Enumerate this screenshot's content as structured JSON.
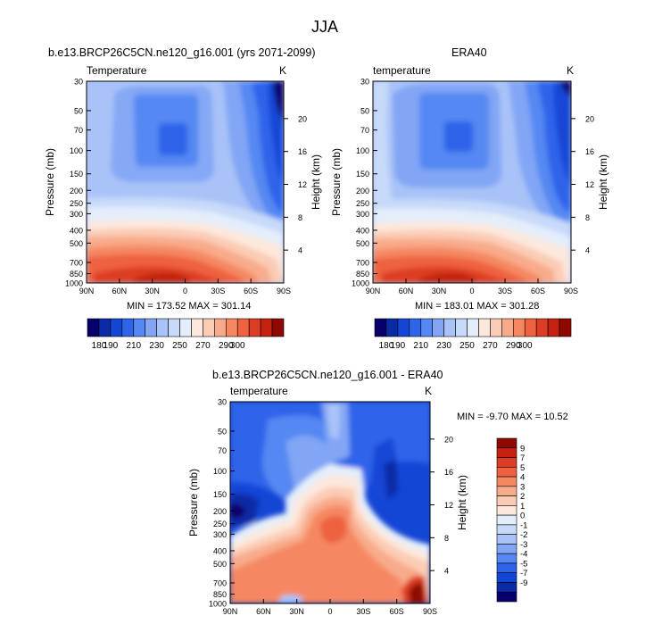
{
  "figure": {
    "title": "JJA"
  },
  "colors": {
    "abs": [
      "#08006a",
      "#0a2aa6",
      "#1446d6",
      "#2d64ea",
      "#5588f2",
      "#82a6f5",
      "#a9c3f8",
      "#c8daf9",
      "#e4eefb",
      "#fde8dd",
      "#fbccb5",
      "#f8ab8b",
      "#f58862",
      "#ee6240",
      "#dd3c24",
      "#c2220f",
      "#8e0a00"
    ],
    "diff": [
      "#08006a",
      "#0a2aa6",
      "#1446d6",
      "#2d64ea",
      "#5588f2",
      "#82a6f5",
      "#a9c3f8",
      "#c8daf9",
      "#e4eefb",
      "#fde8dd",
      "#fbccb5",
      "#f8ab8b",
      "#f58862",
      "#ee6240",
      "#dd3c24",
      "#c2220f",
      "#8e0a00"
    ]
  },
  "panels": [
    {
      "title": "b.e13.BRCP26C5CN.ne120_g16.001 (yrs 2071-2099)",
      "left_label": "Temperature",
      "right_label": "K",
      "minmax": "MIN = 173.52  MAX = 301.14"
    },
    {
      "title": "ERA40",
      "left_label": "temperature",
      "right_label": "K",
      "minmax": "MIN = 183.01  MAX = 301.28"
    },
    {
      "title": "b.e13.BRCP26C5CN.ne120_g16.001 - ERA40",
      "left_label": "temperature",
      "right_label": "K",
      "minmax": "MIN = -9.70  MAX = 10.52"
    }
  ],
  "colorbar_abs": {
    "labels": [
      "180",
      "190",
      "210",
      "230",
      "250",
      "270",
      "290",
      "300"
    ]
  },
  "colorbar_diff": {
    "labels": [
      "9",
      "7",
      "5",
      "4",
      "3",
      "2",
      "1",
      "0",
      "-1",
      "-2",
      "-3",
      "-4",
      "-5",
      "-7",
      "-9"
    ]
  },
  "chart_data": [
    {
      "type": "heatmap",
      "title": "b.e13.BRCP26C5CN.ne120_g16.001 (yrs 2071-2099)",
      "variable": "Temperature",
      "units": "K",
      "xlabel": "",
      "ylabel": "Pressure (mb)",
      "y2label": "Height (km)",
      "x_ticks": [
        "90N",
        "60N",
        "30N",
        "0",
        "30S",
        "60S",
        "90S"
      ],
      "x_values": [
        90,
        60,
        30,
        0,
        -30,
        -60,
        -90
      ],
      "y_ticks": [
        30,
        50,
        70,
        100,
        150,
        200,
        250,
        300,
        400,
        500,
        700,
        850,
        1000
      ],
      "y2_ticks": [
        20,
        16,
        12,
        8,
        4
      ],
      "ylim": [
        1000,
        30
      ],
      "levels": [
        180,
        190,
        200,
        210,
        220,
        230,
        240,
        250,
        260,
        270,
        280,
        290,
        300
      ],
      "min": 173.52,
      "max": 301.14
    },
    {
      "type": "heatmap",
      "title": "ERA40",
      "variable": "temperature",
      "units": "K",
      "xlabel": "",
      "ylabel": "Pressure (mb)",
      "y2label": "Height (km)",
      "x_ticks": [
        "90N",
        "60N",
        "30N",
        "0",
        "30S",
        "60S",
        "90S"
      ],
      "x_values": [
        90,
        60,
        30,
        0,
        -30,
        -60,
        -90
      ],
      "y_ticks": [
        30,
        50,
        70,
        100,
        150,
        200,
        250,
        300,
        400,
        500,
        700,
        850,
        1000
      ],
      "y2_ticks": [
        20,
        16,
        12,
        8,
        4
      ],
      "ylim": [
        1000,
        30
      ],
      "levels": [
        180,
        190,
        200,
        210,
        220,
        230,
        240,
        250,
        260,
        270,
        280,
        290,
        300
      ],
      "min": 183.01,
      "max": 301.28
    },
    {
      "type": "heatmap",
      "title": "b.e13.BRCP26C5CN.ne120_g16.001 - ERA40",
      "variable": "temperature",
      "units": "K",
      "xlabel": "",
      "ylabel": "Pressure (mb)",
      "y2label": "Height (km)",
      "x_ticks": [
        "90N",
        "60N",
        "30N",
        "0",
        "30S",
        "60S",
        "90S"
      ],
      "x_values": [
        90,
        60,
        30,
        0,
        -30,
        -60,
        -90
      ],
      "y_ticks": [
        30,
        50,
        70,
        100,
        150,
        200,
        250,
        300,
        400,
        500,
        700,
        850,
        1000
      ],
      "y2_ticks": [
        20,
        16,
        12,
        8,
        4
      ],
      "ylim": [
        1000,
        30
      ],
      "levels": [
        -9,
        -7,
        -5,
        -4,
        -3,
        -2,
        -1,
        0,
        1,
        2,
        3,
        4,
        5,
        7,
        9
      ],
      "min": -9.7,
      "max": 10.52
    }
  ]
}
